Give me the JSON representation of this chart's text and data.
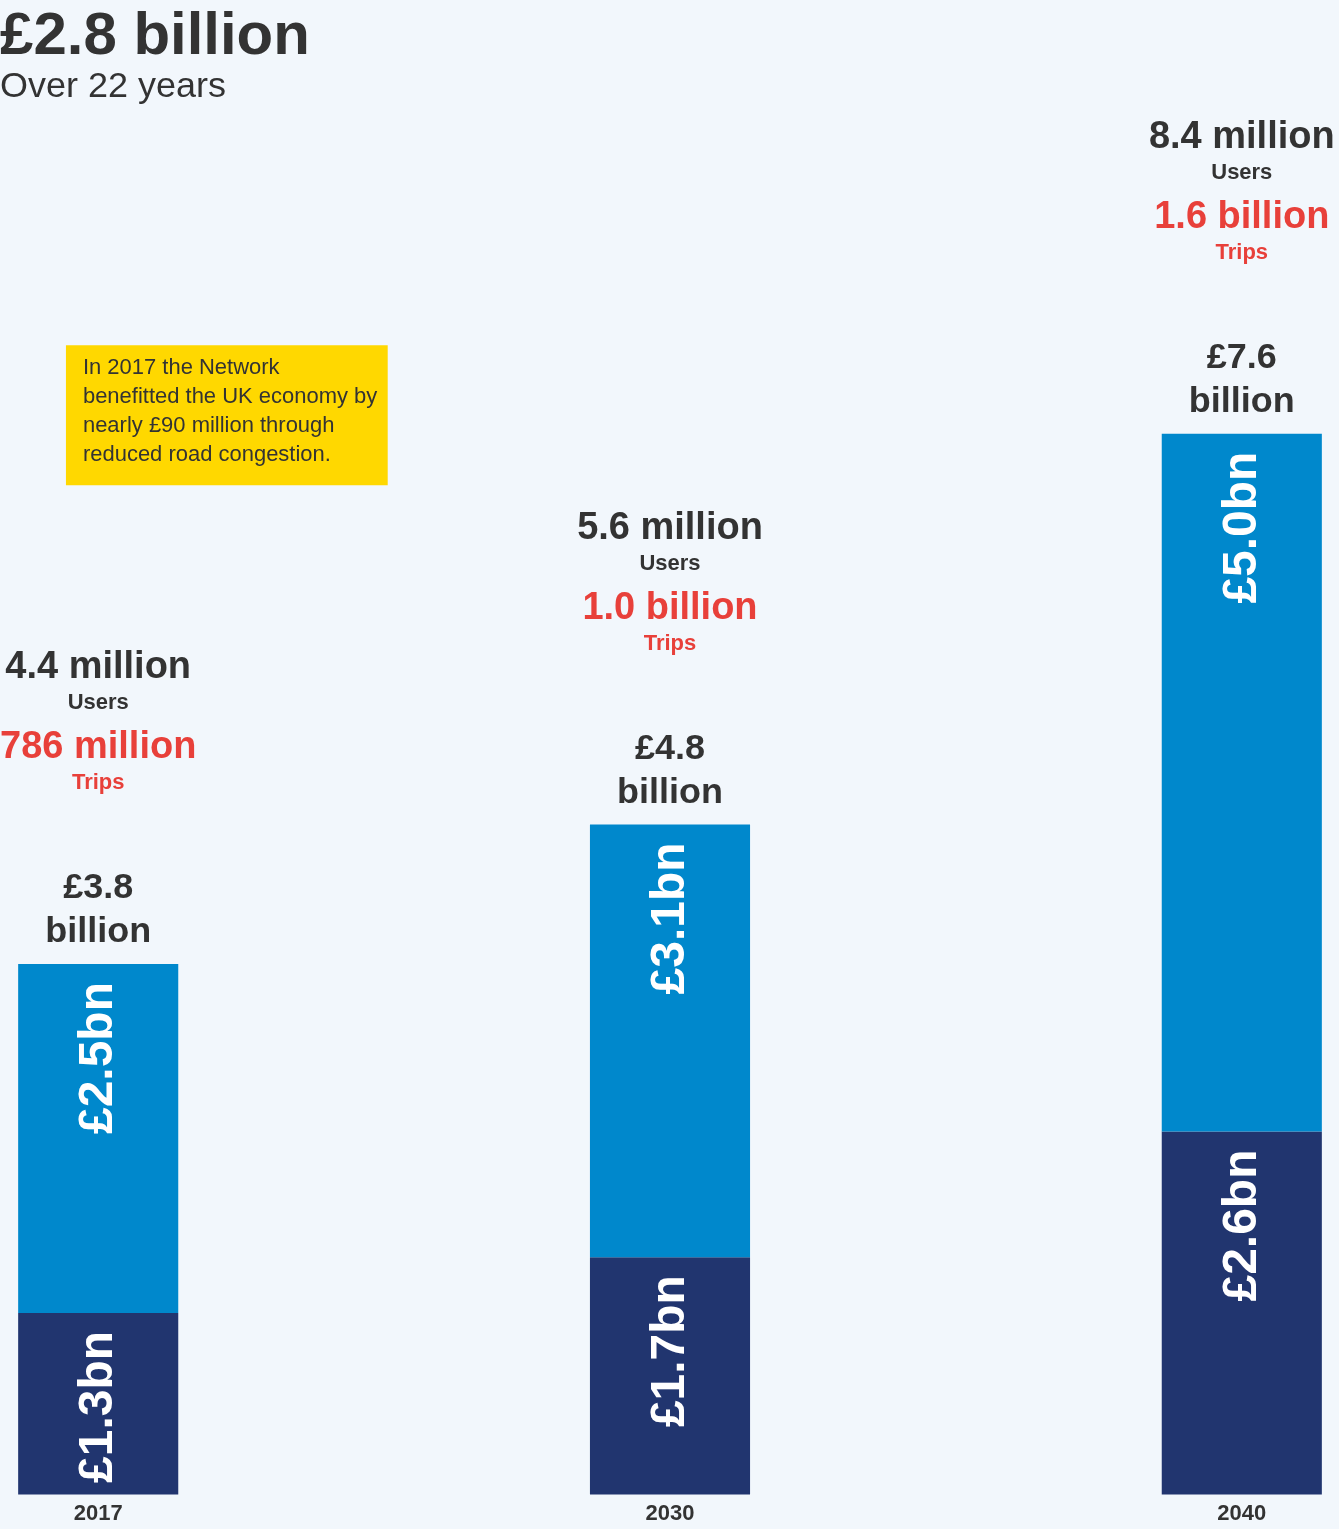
{
  "chart_data": {
    "type": "bar",
    "stacked": true,
    "title": "£2.8 billion",
    "subtitle": "Over 22 years",
    "categories": [
      "2017",
      "2030",
      "2040"
    ],
    "series": [
      {
        "color": "#21356f",
        "values": [
          1.3,
          1.7,
          2.6
        ],
        "value_labels": [
          "£1.3bn",
          "£1.7bn",
          "£2.6bn"
        ]
      },
      {
        "color": "#0088cc",
        "values": [
          2.5,
          3.1,
          5.0
        ],
        "value_labels": [
          "£2.5bn",
          "£3.1bn",
          "£5.0bn"
        ]
      }
    ],
    "totals": [
      "£3.8 billion",
      "£4.8 billion",
      "£7.6 billion"
    ],
    "annotations": [
      "4.4 million",
      "Users",
      "786 million",
      "Trips",
      "5.6 million",
      "Users",
      "1.0 billion",
      "Trips",
      "8.4 million",
      "Users",
      "1.6 billion",
      "Trips",
      "In 2017 the Network benefitted the UK economy by nearly £90 million through reduced road congestion."
    ],
    "grid": false
  }
}
